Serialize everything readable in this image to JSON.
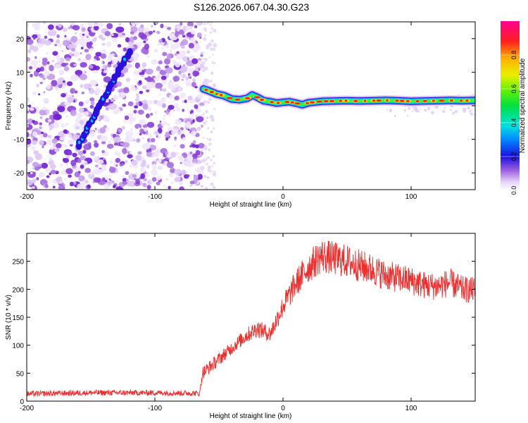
{
  "title": "S126.2026.067.04.30.G23",
  "colors": {
    "snr_line": "#e8302f",
    "axis": "#000000",
    "speckle": "#7a22d8",
    "track_core": "#ff2020"
  },
  "chart_data": [
    {
      "type": "heatmap",
      "title": "S126.2026.067.04.30.G23",
      "xlabel": "Height of straight line (km)",
      "ylabel": "Frequency (Hz)",
      "xlim": [
        -200,
        150
      ],
      "ylim": [
        -25,
        25
      ],
      "xticks": [
        -200,
        -100,
        0,
        100
      ],
      "yticks": [
        -20,
        -10,
        0,
        10,
        20
      ],
      "noise_region_x": [
        -200,
        -63
      ],
      "diagonal_streak": {
        "x": [
          -160,
          -120
        ],
        "y": [
          -12,
          16
        ]
      },
      "track_start_x": -63,
      "track": {
        "x": [
          -62,
          -58,
          -52,
          -46,
          -40,
          -34,
          -28,
          -24,
          -20,
          -15,
          -10,
          -5,
          0,
          5,
          10,
          15,
          20,
          25,
          30,
          40,
          50,
          60,
          70,
          80,
          90,
          100,
          110,
          120,
          130,
          140,
          150
        ],
        "y": [
          5,
          4.5,
          3.5,
          3,
          2,
          1.8,
          2.2,
          3.2,
          2.5,
          1.5,
          1.2,
          0.8,
          1,
          1.2,
          0.8,
          0.3,
          0.9,
          1.1,
          1.3,
          1.4,
          1.5,
          1.4,
          1.5,
          1.6,
          1.5,
          1.3,
          1.4,
          1.5,
          1.6,
          1.5,
          1.6
        ]
      },
      "colorbar": {
        "label": "Normalized spectral amplitude",
        "range": [
          0,
          1
        ],
        "ticks": [
          0.0,
          0.2,
          0.4,
          0.6,
          0.8
        ]
      }
    },
    {
      "type": "line",
      "title": "",
      "xlabel": "Height of straight line (km)",
      "ylabel": "SNR (10 * v/v)",
      "xlim": [
        -200,
        150
      ],
      "ylim": [
        0,
        300
      ],
      "xticks": [
        -200,
        -100,
        0,
        100
      ],
      "yticks": [
        0,
        50,
        100,
        150,
        200,
        250
      ],
      "series": [
        {
          "name": "SNR",
          "x": [
            -200,
            -150,
            -100,
            -65,
            -63,
            -50,
            -40,
            -30,
            -20,
            -10,
            0,
            10,
            20,
            30,
            40,
            50,
            60,
            70,
            80,
            90,
            100,
            110,
            120,
            130,
            140,
            150
          ],
          "y": [
            13,
            15,
            15,
            14,
            50,
            75,
            95,
            115,
            130,
            120,
            170,
            210,
            240,
            260,
            255,
            250,
            242,
            235,
            225,
            220,
            215,
            208,
            205,
            212,
            200,
            198
          ]
        }
      ]
    }
  ]
}
